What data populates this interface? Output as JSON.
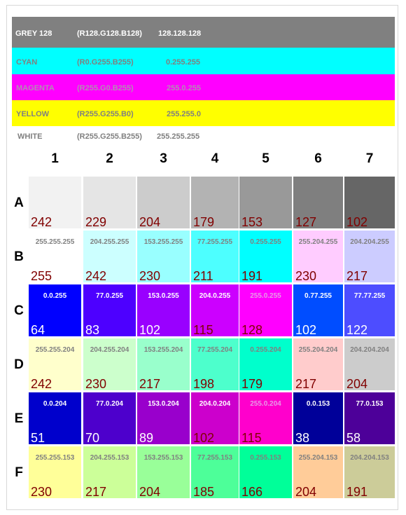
{
  "bands": [
    {
      "name": "GREY 128",
      "rgb": "(R128.G128.B128)",
      "value": "128.128.128",
      "bg": "#808080",
      "fg": "#ffffff"
    },
    {
      "name": "CYAN",
      "rgb": "(R0.G255.B255)",
      "value": "0.255.255",
      "bg": "#00ffff",
      "fg": "#808080"
    },
    {
      "name": "MAGENTA",
      "rgb": "(R255.G0.B255)",
      "value": "255.0.255",
      "bg": "#ff00ff",
      "fg": "#b38cb3"
    },
    {
      "name": "YELLOW",
      "rgb": "(R255.G255.B0)",
      "value": "255.255.0",
      "bg": "#ffff00",
      "fg": "#808080"
    },
    {
      "name": "WHITE",
      "rgb": "(R255.G255.B255)",
      "value": "255.255.255",
      "bg": "#ffffff",
      "fg": "#808080"
    }
  ],
  "columns": [
    "1",
    "2",
    "3",
    "4",
    "5",
    "6",
    "7"
  ],
  "rows": [
    {
      "label": "A",
      "cells": [
        {
          "code": "",
          "num": "242",
          "bg": "#f2f2f2",
          "fg": "#800000"
        },
        {
          "code": "",
          "num": "229",
          "bg": "#e5e5e5",
          "fg": "#800000"
        },
        {
          "code": "",
          "num": "204",
          "bg": "#cccccc",
          "fg": "#800000"
        },
        {
          "code": "",
          "num": "179",
          "bg": "#b3b3b3",
          "fg": "#800000"
        },
        {
          "code": "",
          "num": "153",
          "bg": "#999999",
          "fg": "#800000"
        },
        {
          "code": "",
          "num": "127",
          "bg": "#7f7f7f",
          "fg": "#800000"
        },
        {
          "code": "",
          "num": "102",
          "bg": "#666666",
          "fg": "#800000"
        }
      ]
    },
    {
      "label": "B",
      "cells": [
        {
          "code": "255.255.255",
          "num": "255",
          "bg": "#ffffff",
          "fg": "#800000",
          "cfg": "#808080"
        },
        {
          "code": "204.255.255",
          "num": "242",
          "bg": "#ccffff",
          "fg": "#800000",
          "cfg": "#808080"
        },
        {
          "code": "153.255.255",
          "num": "230",
          "bg": "#99ffff",
          "fg": "#800000",
          "cfg": "#808080"
        },
        {
          "code": "77.255.255",
          "num": "211",
          "bg": "#4dffff",
          "fg": "#800000",
          "cfg": "#808080"
        },
        {
          "code": "0.255.255",
          "num": "191",
          "bg": "#00ffff",
          "fg": "#800000",
          "cfg": "#808080"
        },
        {
          "code": "255.204.255",
          "num": "230",
          "bg": "#ffccff",
          "fg": "#800000",
          "cfg": "#808080"
        },
        {
          "code": "204.204.255",
          "num": "217",
          "bg": "#ccccff",
          "fg": "#800000",
          "cfg": "#808080"
        }
      ]
    },
    {
      "label": "C",
      "cells": [
        {
          "code": "0.0.255",
          "num": "64",
          "bg": "#0000ff",
          "fg": "#ffffff",
          "cfg": "#ffffff"
        },
        {
          "code": "77.0.255",
          "num": "83",
          "bg": "#4d00ff",
          "fg": "#ffffff",
          "cfg": "#ffffff"
        },
        {
          "code": "153.0.255",
          "num": "102",
          "bg": "#9900ff",
          "fg": "#ffffff",
          "cfg": "#ffffff"
        },
        {
          "code": "204.0.255",
          "num": "115",
          "bg": "#cc00ff",
          "fg": "#800000",
          "cfg": "#ffffff"
        },
        {
          "code": "255.0.255",
          "num": "128",
          "bg": "#ff00ff",
          "fg": "#800000",
          "cfg": "#e89ae8"
        },
        {
          "code": "0.77.255",
          "num": "102",
          "bg": "#004dff",
          "fg": "#ffffff",
          "cfg": "#ffffff"
        },
        {
          "code": "77.77.255",
          "num": "122",
          "bg": "#4d4dff",
          "fg": "#ffffff",
          "cfg": "#ffffff"
        }
      ]
    },
    {
      "label": "D",
      "cells": [
        {
          "code": "255.255.204",
          "num": "242",
          "bg": "#ffffcc",
          "fg": "#800000",
          "cfg": "#808080"
        },
        {
          "code": "204.255.204",
          "num": "230",
          "bg": "#ccffcc",
          "fg": "#800000",
          "cfg": "#808080"
        },
        {
          "code": "153.255.204",
          "num": "217",
          "bg": "#99ffcc",
          "fg": "#800000",
          "cfg": "#808080"
        },
        {
          "code": "77.255.204",
          "num": "198",
          "bg": "#4dffcc",
          "fg": "#800000",
          "cfg": "#808080"
        },
        {
          "code": "0.255.204",
          "num": "179",
          "bg": "#00ffcc",
          "fg": "#800000",
          "cfg": "#808080"
        },
        {
          "code": "255.204.204",
          "num": "217",
          "bg": "#ffcccc",
          "fg": "#800000",
          "cfg": "#808080"
        },
        {
          "code": "204.204.204",
          "num": "204",
          "bg": "#cccccc",
          "fg": "#800000",
          "cfg": "#808080"
        }
      ]
    },
    {
      "label": "E",
      "cells": [
        {
          "code": "0.0.204",
          "num": "51",
          "bg": "#0000cc",
          "fg": "#ffffff",
          "cfg": "#ffffff"
        },
        {
          "code": "77.0.204",
          "num": "70",
          "bg": "#4d00cc",
          "fg": "#ffffff",
          "cfg": "#ffffff"
        },
        {
          "code": "153.0.204",
          "num": "89",
          "bg": "#9900cc",
          "fg": "#ffffff",
          "cfg": "#ffffff"
        },
        {
          "code": "204.0.204",
          "num": "102",
          "bg": "#cc00cc",
          "fg": "#800000",
          "cfg": "#ffffff"
        },
        {
          "code": "255.0.204",
          "num": "115",
          "bg": "#ff00cc",
          "fg": "#800000",
          "cfg": "#e89ae8"
        },
        {
          "code": "0.0.153",
          "num": "38",
          "bg": "#000099",
          "fg": "#ffffff",
          "cfg": "#ffffff"
        },
        {
          "code": "77.0.153",
          "num": "58",
          "bg": "#4d0099",
          "fg": "#ffffff",
          "cfg": "#ffffff"
        }
      ]
    },
    {
      "label": "F",
      "cells": [
        {
          "code": "255.255.153",
          "num": "230",
          "bg": "#ffff99",
          "fg": "#800000",
          "cfg": "#808080"
        },
        {
          "code": "204.255.153",
          "num": "217",
          "bg": "#ccff99",
          "fg": "#800000",
          "cfg": "#808080"
        },
        {
          "code": "153.255.153",
          "num": "204",
          "bg": "#99ff99",
          "fg": "#800000",
          "cfg": "#808080"
        },
        {
          "code": "77.255.153",
          "num": "185",
          "bg": "#4dff99",
          "fg": "#800000",
          "cfg": "#808080"
        },
        {
          "code": "0.255.153",
          "num": "166",
          "bg": "#00ff99",
          "fg": "#800000",
          "cfg": "#808080"
        },
        {
          "code": "255.204.153",
          "num": "204",
          "bg": "#ffcc99",
          "fg": "#800000",
          "cfg": "#808080"
        },
        {
          "code": "204.204.153",
          "num": "191",
          "bg": "#cccc99",
          "fg": "#800000",
          "cfg": "#808080"
        }
      ]
    }
  ]
}
